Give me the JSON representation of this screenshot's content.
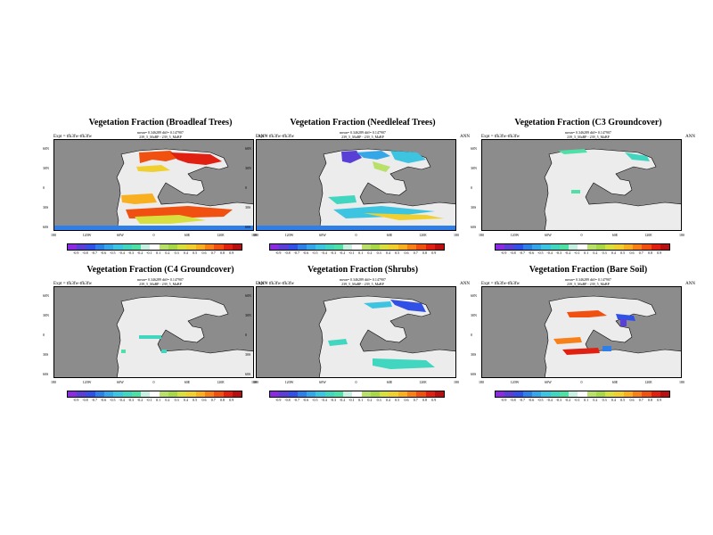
{
  "figure": {
    "panels": [
      {
        "title": "Vegetation Fraction (Broadleaf Trees)",
        "stats": "mean= 0.346289 diff= 0.147907",
        "expt": "Expt = tfk3fw-tfk3fw",
        "run": "239_5_MaBP - 239_5_MaBP",
        "season": "ANN"
      },
      {
        "title": "Vegetation Fraction (Needleleaf Trees)",
        "stats": "mean= 0.346289 diff= 0.147907",
        "expt": "Expt = tfk3fw-tfk3fw",
        "run": "239_5_MaBP - 239_5_MaBP",
        "season": "ANN"
      },
      {
        "title": "Vegetation Fraction (C3 Groundcover)",
        "stats": "mean= 0.346289 diff= 0.147907",
        "expt": "Expt = tfk3fw-tfk3fw",
        "run": "239_5_MaBP - 239_5_MaBP",
        "season": "ANN"
      },
      {
        "title": "Vegetation Fraction (C4 Groundcover)",
        "stats": "mean= 0.346289 diff= 0.147907",
        "expt": "Expt = tfk3fw-tfk3fw",
        "run": "239_5_MaBP - 239_5_MaBP",
        "season": "ANN"
      },
      {
        "title": "Vegetation Fraction (Shrubs)",
        "stats": "mean= 0.346289 diff= 0.147907",
        "expt": "Expt = tfk3fw-tfk3fw",
        "run": "239_5_MaBP - 239_5_MaBP",
        "season": "ANN"
      },
      {
        "title": "Vegetation Fraction (Bare Soil)",
        "stats": "mean= 0.346289 diff= 0.147907",
        "expt": "Expt = tfk3fw-tfk3fw",
        "run": "239_5_MaBP - 239_5_MaBP",
        "season": "ANN"
      }
    ],
    "lat_labels": [
      "60N",
      "30N",
      "0",
      "30S",
      "60S"
    ],
    "lon_labels": [
      "180",
      "120W",
      "60W",
      "0",
      "60E",
      "120E",
      "180"
    ],
    "colorbar_labels": [
      "-0.9",
      "-0.8",
      "-0.7",
      "-0.6",
      "-0.5",
      "-0.4",
      "-0.3",
      "-0.2",
      "-0.1",
      "0.1",
      "0.2",
      "0.3",
      "0.4",
      "0.5",
      "0.6",
      "0.7",
      "0.8",
      "0.9"
    ],
    "colorbar_colors": [
      "#8a2be2",
      "#5a3fd6",
      "#3050e6",
      "#2f7fe8",
      "#35a6e8",
      "#3cc4e0",
      "#40d6c0",
      "#4fe0a8",
      "#c8f0e0",
      "#ffffff",
      "#b8e06a",
      "#a8d84a",
      "#d8e040",
      "#f0d030",
      "#f8b020",
      "#f88018",
      "#f05010",
      "#e02010",
      "#b81010"
    ],
    "ocean_color": "#8c8c8c",
    "land_color": "#ececec"
  }
}
